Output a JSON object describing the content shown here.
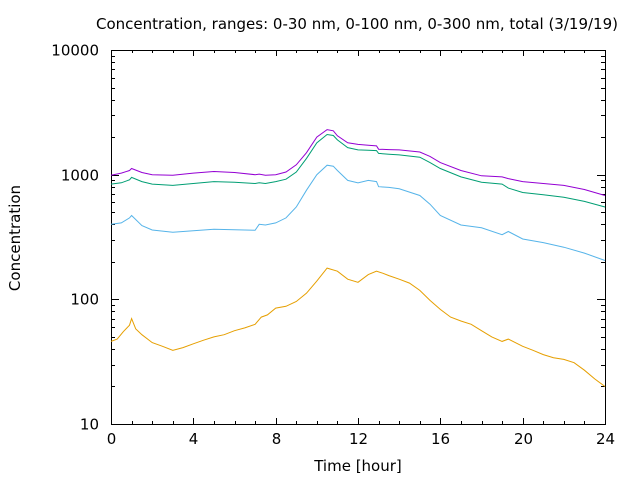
{
  "chart_data": {
    "type": "line",
    "title": "Concentration, ranges: 0-30 nm, 0-100 nm, 0-300 nm, total (3/19/19)",
    "xlabel": "Time [hour]",
    "ylabel": "Concentration",
    "xlim": [
      0,
      24
    ],
    "ylim": [
      10,
      10000
    ],
    "yscale": "log",
    "grid": false,
    "x_ticks": [
      0,
      4,
      8,
      12,
      16,
      20,
      24
    ],
    "x_tick_labels": [
      "0",
      "4",
      "8",
      "12",
      "16",
      "20",
      "24"
    ],
    "y_ticks": [
      10,
      100,
      1000,
      10000
    ],
    "y_tick_labels": [
      "10",
      "100",
      "1000",
      "10000"
    ],
    "series": [
      {
        "color": "#9400d3",
        "x": [
          0,
          0.5,
          0.9,
          1.0,
          1.5,
          2,
          3,
          4,
          5,
          6,
          7,
          7.2,
          7.5,
          8,
          8.5,
          9,
          9.5,
          10,
          10.5,
          10.8,
          11,
          11.5,
          12,
          12.5,
          12.9,
          13,
          13.5,
          14,
          15,
          15.5,
          16,
          17,
          18,
          19,
          19.3,
          20,
          21,
          22,
          23,
          24
        ],
        "y": [
          990,
          1030,
          1080,
          1120,
          1040,
          1000,
          990,
          1030,
          1060,
          1040,
          1000,
          1010,
          990,
          1000,
          1050,
          1200,
          1500,
          2000,
          2300,
          2250,
          2050,
          1800,
          1750,
          1720,
          1700,
          1600,
          1590,
          1580,
          1520,
          1400,
          1250,
          1080,
          980,
          960,
          930,
          880,
          850,
          820,
          760,
          680
        ]
      },
      {
        "color": "#009e73",
        "x": [
          0,
          0.5,
          0.9,
          1.0,
          1.5,
          2,
          3,
          4,
          5,
          6,
          7,
          7.2,
          7.5,
          8,
          8.5,
          9,
          9.5,
          10,
          10.5,
          10.8,
          11,
          11.5,
          12,
          12.5,
          12.9,
          13,
          13.5,
          14,
          15,
          15.5,
          16,
          17,
          18,
          19,
          19.3,
          20,
          21,
          22,
          23,
          24
        ],
        "y": [
          840,
          860,
          910,
          950,
          880,
          840,
          820,
          850,
          880,
          870,
          850,
          860,
          850,
          880,
          920,
          1050,
          1350,
          1800,
          2100,
          2060,
          1900,
          1650,
          1580,
          1570,
          1560,
          1480,
          1460,
          1440,
          1380,
          1250,
          1120,
          960,
          870,
          840,
          780,
          720,
          690,
          660,
          610,
          550
        ]
      },
      {
        "color": "#56b4e9",
        "x": [
          0,
          0.5,
          0.9,
          1.0,
          1.5,
          2,
          3,
          4,
          5,
          6,
          7,
          7.2,
          7.5,
          8,
          8.5,
          9,
          9.5,
          10,
          10.5,
          10.8,
          11,
          11.5,
          12,
          12.5,
          12.9,
          13,
          13.5,
          14,
          15,
          15.5,
          16,
          17,
          18,
          19,
          19.3,
          20,
          21,
          22,
          23,
          24
        ],
        "y": [
          400,
          410,
          450,
          470,
          390,
          360,
          345,
          355,
          365,
          362,
          358,
          400,
          395,
          410,
          450,
          550,
          750,
          1000,
          1190,
          1170,
          1080,
          900,
          860,
          900,
          880,
          800,
          790,
          770,
          680,
          580,
          470,
          395,
          375,
          330,
          350,
          305,
          285,
          262,
          235,
          205
        ]
      },
      {
        "color": "#e69f00",
        "x": [
          0,
          0.3,
          0.6,
          0.9,
          1.0,
          1.2,
          1.5,
          2,
          2.5,
          3,
          3.5,
          4,
          4.5,
          5,
          5.5,
          6,
          6.5,
          7,
          7.3,
          7.6,
          8,
          8.5,
          9,
          9.5,
          10,
          10.5,
          11,
          11.5,
          12,
          12.5,
          12.9,
          13.2,
          13.5,
          14,
          14.5,
          15,
          15.5,
          16,
          16.5,
          17,
          17.5,
          18,
          18.5,
          19,
          19.3,
          20,
          20.5,
          21,
          21.5,
          22,
          22.5,
          23,
          23.5,
          24
        ],
        "y": [
          46,
          48,
          55,
          62,
          70,
          58,
          52,
          45,
          42,
          39,
          41,
          44,
          47,
          50,
          52,
          56,
          59,
          63,
          72,
          75,
          85,
          88,
          96,
          112,
          140,
          178,
          168,
          145,
          137,
          158,
          168,
          162,
          155,
          145,
          135,
          118,
          98,
          83,
          72,
          67,
          63,
          56,
          50,
          46,
          48,
          42,
          39,
          36,
          34,
          33,
          31,
          27,
          23,
          20
        ]
      }
    ]
  }
}
